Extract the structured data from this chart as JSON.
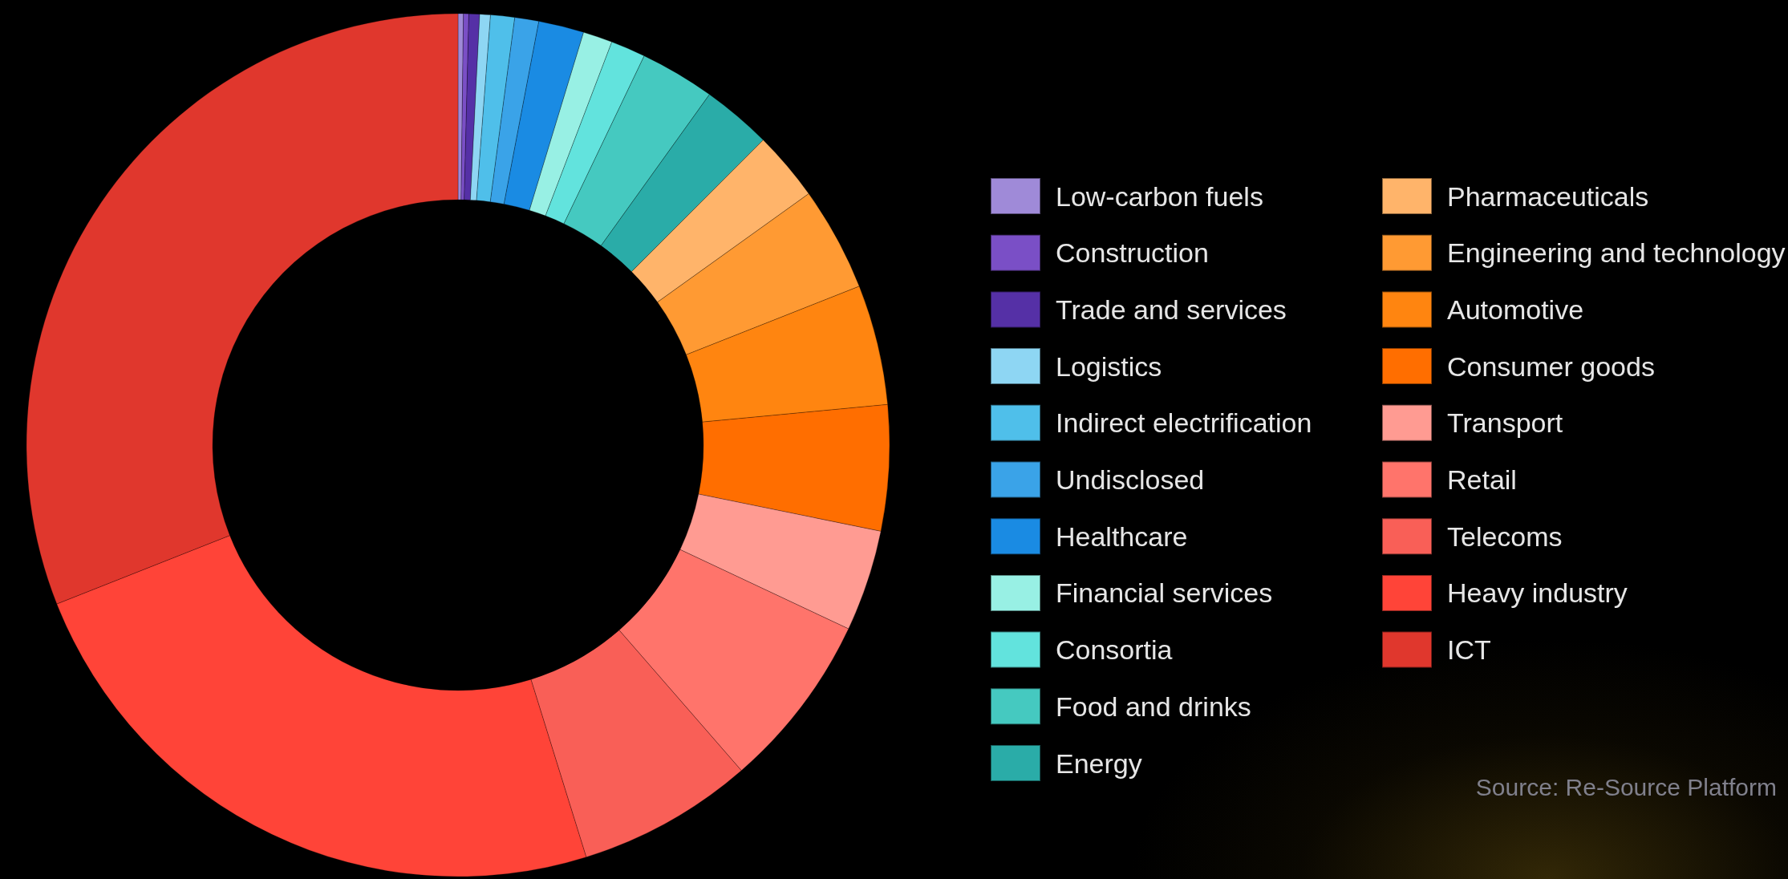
{
  "chart_data": {
    "type": "donut",
    "categories": [
      "Low-carbon fuels",
      "Construction",
      "Trade and services",
      "Logistics",
      "Indirect electrification",
      "Undisclosed",
      "Healthcare",
      "Financial services",
      "Consortia",
      "Food and drinks",
      "Energy",
      "Pharmaceuticals",
      "Engineering and technology",
      "Automotive",
      "Consumer goods",
      "Transport",
      "Retail",
      "Telecoms",
      "Heavy industry",
      "ICT"
    ],
    "values": [
      0.2,
      0.2,
      0.4,
      0.4,
      0.9,
      0.9,
      1.7,
      1.1,
      1.3,
      2.8,
      2.6,
      2.6,
      3.9,
      4.5,
      4.7,
      3.8,
      6.6,
      6.6,
      23.8,
      31.0
    ],
    "colors": [
      "#9f8ad8",
      "#7a4fc6",
      "#5530a6",
      "#8ed6f3",
      "#4fbfea",
      "#3aa3e8",
      "#1a8be3",
      "#98f0e4",
      "#62e3dd",
      "#45c9c0",
      "#2aaca8",
      "#ffb46a",
      "#ff9a33",
      "#ff8510",
      "#ff6e00",
      "#ff9b92",
      "#ff746b",
      "#f95f57",
      "#ff4438",
      "#e0372d"
    ],
    "legend": "right",
    "annotations": [
      "Source: Re-Source Platform"
    ]
  }
}
